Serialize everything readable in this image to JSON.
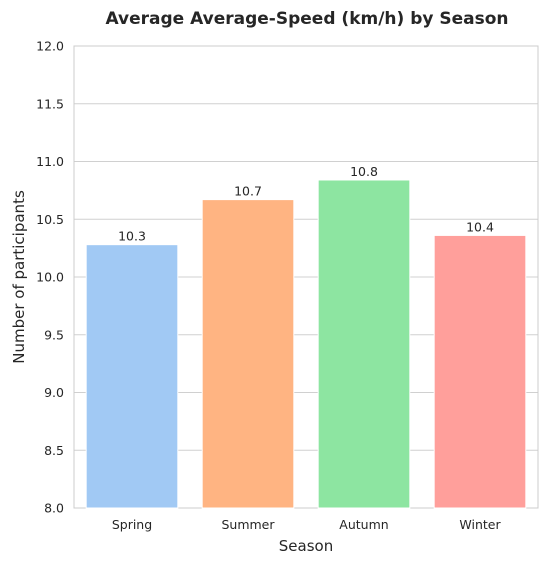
{
  "chart_data": {
    "type": "bar",
    "title": "Average Average-Speed (km/h) by Season",
    "xlabel": "Season",
    "ylabel": "Number of participants",
    "categories": [
      "Spring",
      "Summer",
      "Autumn",
      "Winter"
    ],
    "values": [
      10.28,
      10.67,
      10.84,
      10.36
    ],
    "data_labels": [
      "10.3",
      "10.7",
      "10.8",
      "10.4"
    ],
    "ylim": [
      8.0,
      12.0
    ],
    "yticks": [
      "8.0",
      "8.5",
      "9.0",
      "9.5",
      "10.0",
      "10.5",
      "11.0",
      "11.5",
      "12.0"
    ],
    "grid": "horizontal",
    "colors": [
      "#a1c9f4",
      "#ffb482",
      "#8de5a1",
      "#ff9f9b"
    ]
  }
}
